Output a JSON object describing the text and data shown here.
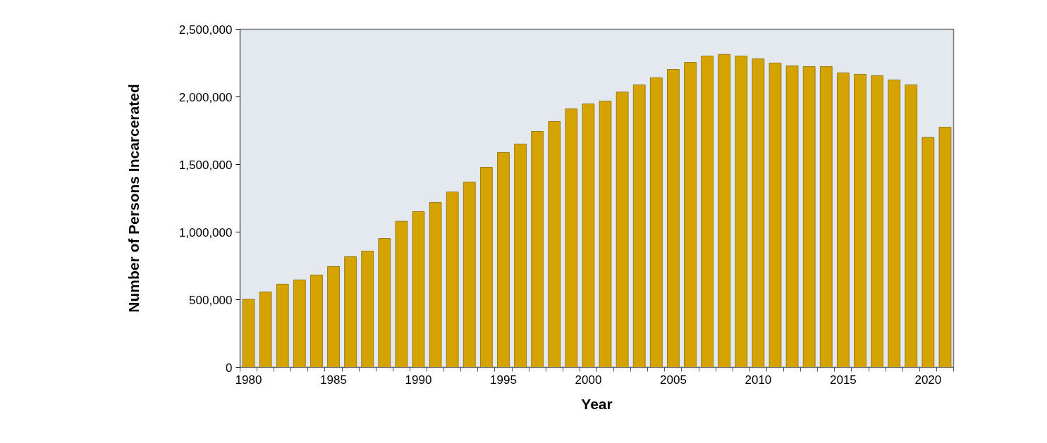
{
  "chart_data": {
    "type": "bar",
    "xlabel": "Year",
    "ylabel": "Number of Persons Incarcerated",
    "x": [
      1980,
      1981,
      1982,
      1983,
      1984,
      1985,
      1986,
      1987,
      1988,
      1989,
      1990,
      1991,
      1992,
      1993,
      1994,
      1995,
      1996,
      1997,
      1998,
      1999,
      2000,
      2001,
      2002,
      2003,
      2004,
      2005,
      2006,
      2007,
      2008,
      2009,
      2010,
      2011,
      2012,
      2013,
      2014,
      2015,
      2016,
      2017,
      2018,
      2019,
      2020,
      2021
    ],
    "values": [
      503000,
      557000,
      615000,
      646000,
      682000,
      745000,
      818000,
      859000,
      953000,
      1080000,
      1151000,
      1219000,
      1297000,
      1370000,
      1479000,
      1589000,
      1651000,
      1745000,
      1818000,
      1911000,
      1948000,
      1969000,
      2036000,
      2089000,
      2141000,
      2203000,
      2255000,
      2302000,
      2314000,
      2302000,
      2281000,
      2250000,
      2229000,
      2224000,
      2224000,
      2177000,
      2167000,
      2156000,
      2125000,
      2089000,
      1700000,
      1776000
    ],
    "color": "#d4a300",
    "xlim": [
      1979.5,
      2021.5
    ],
    "xticks": [
      1980,
      1985,
      1990,
      1995,
      2000,
      2005,
      2010,
      2015,
      2020
    ],
    "ylim": [
      0,
      2500000
    ],
    "yticks": [
      0,
      {
        "value": 500000,
        "label": "500,000"
      },
      {
        "value": 1000000,
        "label": "1,000,000"
      },
      {
        "value": 1500000,
        "label": "1,500,000"
      },
      {
        "value": 2000000,
        "label": "2,000,000"
      },
      {
        "value": 2500000,
        "label": "2,500,000"
      }
    ]
  }
}
